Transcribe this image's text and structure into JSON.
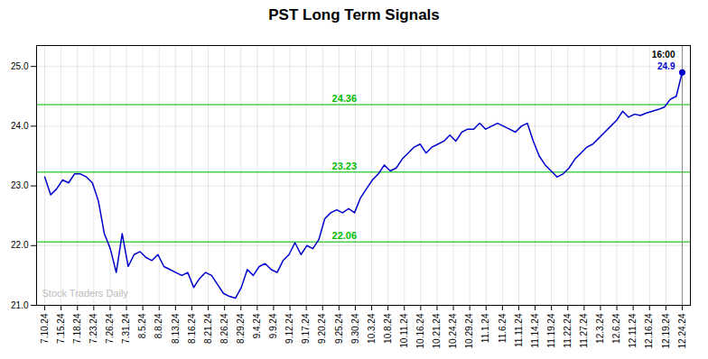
{
  "chart_data": {
    "type": "line",
    "title": "PST Long Term Signals",
    "color": "#0000CC",
    "grid": true,
    "x": [
      0,
      0.3645,
      0.729,
      1.0935,
      1.4579,
      1.8224,
      2.1869,
      2.5514,
      2.9159,
      3.2804,
      3.6449,
      4.0093,
      4.3738,
      4.7383,
      5.1028,
      5.4673,
      5.8318,
      6.1963,
      6.5607,
      6.9252,
      7.2897,
      7.6542,
      8.0187,
      8.3832,
      8.7477,
      9.1121,
      9.4766,
      9.8411,
      10.2056,
      10.5701,
      10.9346,
      11.2991,
      11.6636,
      12.028,
      12.3925,
      12.757,
      13.1215,
      13.486,
      13.8505,
      14.215,
      14.5794,
      14.9439,
      15.3084,
      15.6729,
      16.0374,
      16.4019,
      16.7664,
      17.1308,
      17.4953,
      17.8598,
      18.2243,
      18.5888,
      18.9533,
      19.3178,
      19.6822,
      20.0467,
      20.4112,
      20.7757,
      21.1402,
      21.5047,
      21.8692,
      22.2336,
      22.5981,
      22.9626,
      23.3271,
      23.6916,
      24.0561,
      24.4206,
      24.785,
      25.1495,
      25.514,
      25.8785,
      26.243,
      26.6075,
      26.972,
      27.3364,
      27.7009,
      28.0654,
      28.4299,
      28.7944,
      29.1589,
      29.5234,
      29.8879,
      30.2523,
      30.6168,
      30.9813,
      31.3458,
      31.7103,
      32.0748,
      32.4393,
      32.8037,
      33.1682,
      33.5327,
      33.8972,
      34.2617,
      34.6262,
      34.9907,
      35.3551,
      35.7196,
      36.0841,
      36.4486,
      36.8131,
      37.1776,
      37.5421,
      37.9065,
      38.271,
      38.6355,
      39
    ],
    "values": [
      23.15,
      22.85,
      22.95,
      23.1,
      23.05,
      23.2,
      23.2,
      23.15,
      23.05,
      22.75,
      22.2,
      21.95,
      21.55,
      22.2,
      21.65,
      21.85,
      21.9,
      21.8,
      21.75,
      21.85,
      21.65,
      21.6,
      21.55,
      21.5,
      21.55,
      21.3,
      21.45,
      21.55,
      21.5,
      21.35,
      21.2,
      21.15,
      21.12,
      21.3,
      21.6,
      21.5,
      21.65,
      21.7,
      21.6,
      21.55,
      21.75,
      21.85,
      22.05,
      21.85,
      22.0,
      21.95,
      22.1,
      22.45,
      22.55,
      22.6,
      22.55,
      22.62,
      22.55,
      22.8,
      22.95,
      23.1,
      23.2,
      23.35,
      23.25,
      23.3,
      23.45,
      23.55,
      23.65,
      23.7,
      23.55,
      23.65,
      23.7,
      23.75,
      23.85,
      23.75,
      23.9,
      23.95,
      23.95,
      24.05,
      23.95,
      24.0,
      24.05,
      24.0,
      23.95,
      23.9,
      24.0,
      24.05,
      23.75,
      23.5,
      23.35,
      23.25,
      23.15,
      23.2,
      23.3,
      23.45,
      23.55,
      23.65,
      23.7,
      23.8,
      23.9,
      24.0,
      24.1,
      24.25,
      24.15,
      24.2,
      24.18,
      24.22,
      24.25,
      24.28,
      24.32,
      24.45,
      24.5,
      24.9
    ],
    "xlim": [
      -0.5,
      39.5
    ],
    "xticks": [
      {
        "value": 0,
        "label": "7.10.24"
      },
      {
        "value": 1,
        "label": "7.15.24"
      },
      {
        "value": 2,
        "label": "7.18.24"
      },
      {
        "value": 3,
        "label": "7.23.24"
      },
      {
        "value": 4,
        "label": "7.26.24"
      },
      {
        "value": 5,
        "label": "7.31.24"
      },
      {
        "value": 6,
        "label": "8.5.24"
      },
      {
        "value": 7,
        "label": "8.8.24"
      },
      {
        "value": 8,
        "label": "8.13.24"
      },
      {
        "value": 9,
        "label": "8.16.24"
      },
      {
        "value": 10,
        "label": "8.21.24"
      },
      {
        "value": 11,
        "label": "8.26.24"
      },
      {
        "value": 12,
        "label": "8.29.24"
      },
      {
        "value": 13,
        "label": "9.4.24"
      },
      {
        "value": 14,
        "label": "9.9.24"
      },
      {
        "value": 15,
        "label": "9.12.24"
      },
      {
        "value": 16,
        "label": "9.17.24"
      },
      {
        "value": 17,
        "label": "9.20.24"
      },
      {
        "value": 18,
        "label": "9.25.24"
      },
      {
        "value": 19,
        "label": "9.30.24"
      },
      {
        "value": 20,
        "label": "10.3.24"
      },
      {
        "value": 21,
        "label": "10.8.24"
      },
      {
        "value": 22,
        "label": "10.11.24"
      },
      {
        "value": 23,
        "label": "10.16.24"
      },
      {
        "value": 24,
        "label": "10.21.24"
      },
      {
        "value": 25,
        "label": "10.24.24"
      },
      {
        "value": 26,
        "label": "10.29.24"
      },
      {
        "value": 27,
        "label": "11.1.24"
      },
      {
        "value": 28,
        "label": "11.6.24"
      },
      {
        "value": 29,
        "label": "11.11.24"
      },
      {
        "value": 30,
        "label": "11.14.24"
      },
      {
        "value": 31,
        "label": "11.19.24"
      },
      {
        "value": 32,
        "label": "11.22.24"
      },
      {
        "value": 33,
        "label": "11.27.24"
      },
      {
        "value": 34,
        "label": "12.3.24"
      },
      {
        "value": 35,
        "label": "12.6.24"
      },
      {
        "value": 36,
        "label": "12.11.24"
      },
      {
        "value": 37,
        "label": "12.16.24"
      },
      {
        "value": 38,
        "label": "12.19.24"
      },
      {
        "value": 39,
        "label": "12.24.24"
      }
    ],
    "ylim": [
      21.0,
      25.35
    ],
    "yticks": [
      21,
      22,
      23,
      24,
      25
    ],
    "hlines": [
      {
        "y": 22.06,
        "label": "22.06",
        "color": "#00bb00"
      },
      {
        "y": 23.23,
        "label": "23.23",
        "color": "#00bb00"
      },
      {
        "y": 24.36,
        "label": "24.36",
        "color": "#00bb00"
      }
    ],
    "annotations": [
      {
        "text": "16:00",
        "x": 39,
        "y": 24.9,
        "color": "#000000"
      },
      {
        "text": "24.9",
        "x": 39,
        "y": 24.9,
        "color": "#0000CC"
      }
    ],
    "watermark": "Stock Traders Daily"
  }
}
